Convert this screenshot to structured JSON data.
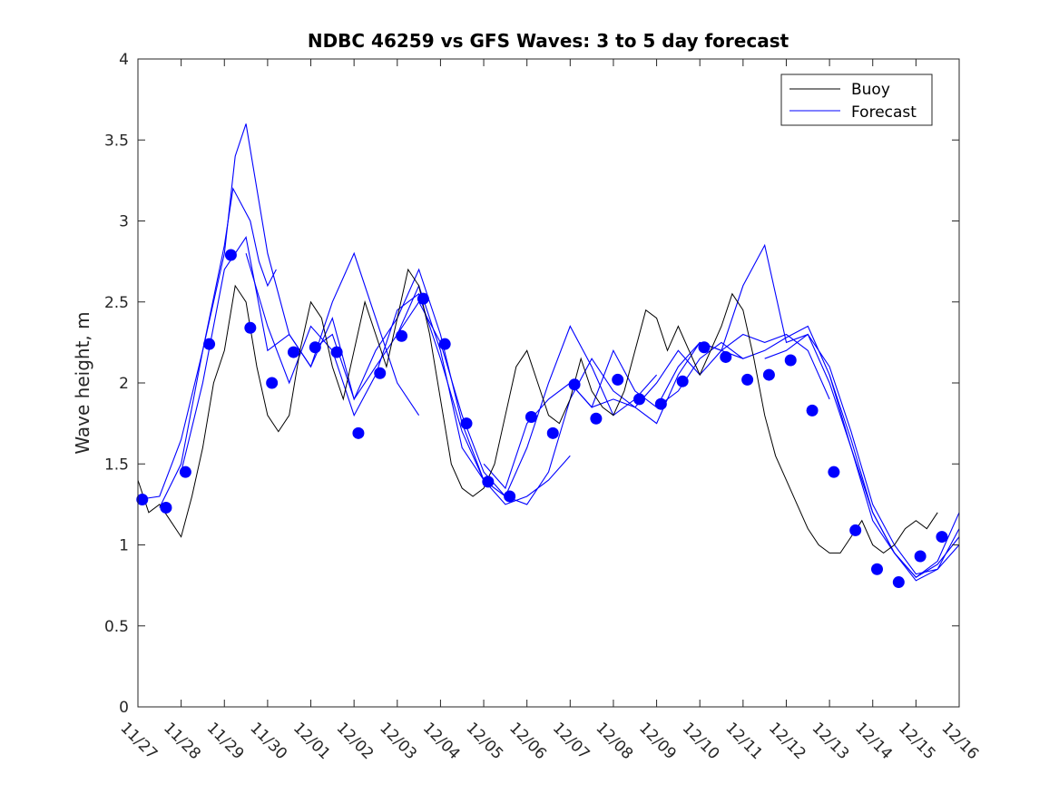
{
  "chart_data": {
    "type": "line",
    "title": "NDBC 46259 vs GFS Waves: 3 to 5 day forecast",
    "xlabel": "",
    "ylabel": "Wave height, m",
    "xlim": [
      0,
      19
    ],
    "ylim": [
      0,
      4
    ],
    "yticks": [
      0,
      0.5,
      1,
      1.5,
      2,
      2.5,
      3,
      3.5,
      4
    ],
    "ytick_labels": [
      "0",
      "0.5",
      "1",
      "1.5",
      "2",
      "2.5",
      "3",
      "3.5",
      "4"
    ],
    "xtick_labels": [
      "11/27",
      "11/28",
      "11/29",
      "11/30",
      "12/01",
      "12/02",
      "12/03",
      "12/04",
      "12/05",
      "12/06",
      "12/07",
      "12/08",
      "12/09",
      "12/10",
      "12/11",
      "12/12",
      "12/13",
      "12/14",
      "12/15",
      "12/16"
    ],
    "legend": {
      "location": "top-right",
      "entries": [
        "Buoy",
        "Forecast"
      ]
    },
    "colors": {
      "buoy": "#000000",
      "forecast": "#0000ff",
      "axis": "#262626"
    },
    "buoy": {
      "name": "Buoy",
      "x": [
        0,
        0.25,
        0.5,
        0.75,
        1,
        1.25,
        1.5,
        1.75,
        2,
        2.25,
        2.5,
        2.75,
        3,
        3.25,
        3.5,
        3.75,
        4,
        4.25,
        4.5,
        4.75,
        5,
        5.25,
        5.5,
        5.75,
        6,
        6.25,
        6.5,
        6.75,
        7,
        7.25,
        7.5,
        7.75,
        8,
        8.25,
        8.5,
        8.75,
        9,
        9.25,
        9.5,
        9.75,
        10,
        10.25,
        10.5,
        10.75,
        11,
        11.25,
        11.5,
        11.75,
        12,
        12.25,
        12.5,
        12.75,
        13,
        13.25,
        13.5,
        13.75,
        14,
        14.25,
        14.5,
        14.75,
        15,
        15.25,
        15.5,
        15.75,
        16,
        16.25,
        16.5,
        16.75,
        17,
        17.25,
        17.5,
        17.75,
        18,
        18.25,
        18.5
      ],
      "y": [
        1.4,
        1.2,
        1.25,
        1.15,
        1.05,
        1.3,
        1.6,
        2.0,
        2.2,
        2.6,
        2.5,
        2.1,
        1.8,
        1.7,
        1.8,
        2.2,
        2.5,
        2.4,
        2.1,
        1.9,
        2.2,
        2.5,
        2.3,
        2.1,
        2.4,
        2.7,
        2.6,
        2.3,
        1.9,
        1.5,
        1.35,
        1.3,
        1.35,
        1.5,
        1.8,
        2.1,
        2.2,
        2.0,
        1.8,
        1.75,
        1.9,
        2.15,
        1.95,
        1.85,
        1.8,
        1.95,
        2.2,
        2.45,
        2.4,
        2.2,
        2.35,
        2.2,
        2.05,
        2.2,
        2.35,
        2.55,
        2.45,
        2.15,
        1.8,
        1.55,
        1.4,
        1.25,
        1.1,
        1.0,
        0.95,
        0.95,
        1.05,
        1.15,
        1.0,
        0.95,
        1.0,
        1.1,
        1.15,
        1.1,
        1.2
      ]
    },
    "forecast_runs": [
      {
        "name": "Forecast",
        "x": [
          0,
          0.5,
          1.0,
          1.5,
          2.0,
          2.2,
          2.4,
          2.6,
          2.8,
          3.0,
          3.2
        ],
        "y": [
          1.28,
          1.3,
          1.65,
          2.2,
          2.85,
          3.2,
          3.1,
          3.0,
          2.75,
          2.6,
          2.7
        ]
      },
      {
        "name": "Forecast",
        "x": [
          0.5,
          1.0,
          1.5,
          2.0,
          2.25,
          2.5,
          2.75,
          3.0,
          3.5,
          4.0,
          4.5,
          5.0,
          5.5,
          6.0,
          6.5
        ],
        "y": [
          1.23,
          1.5,
          2.2,
          2.8,
          3.4,
          3.6,
          3.2,
          2.8,
          2.3,
          2.1,
          2.5,
          2.8,
          2.4,
          2.0,
          1.8
        ]
      },
      {
        "name": "Forecast",
        "x": [
          1.0,
          1.5,
          2.0,
          2.5,
          3.0,
          3.5,
          4.0,
          4.5,
          5.0,
          5.5,
          6.0,
          6.5,
          7.0,
          7.5,
          8.0
        ],
        "y": [
          1.45,
          2.0,
          2.7,
          2.9,
          2.2,
          2.3,
          2.1,
          2.4,
          1.9,
          2.1,
          2.3,
          2.6,
          2.2,
          1.6,
          1.4
        ]
      },
      {
        "name": "Forecast",
        "x": [
          2.5,
          3.0,
          3.5,
          4.0,
          4.5,
          5.0,
          5.5,
          6.0,
          6.5,
          7.0,
          7.5,
          8.0,
          8.5,
          9.0,
          9.5,
          10.0
        ],
        "y": [
          2.8,
          2.35,
          2.0,
          2.35,
          2.2,
          1.8,
          2.05,
          2.45,
          2.55,
          2.15,
          1.7,
          1.4,
          1.25,
          1.3,
          1.4,
          1.55
        ]
      },
      {
        "name": "Forecast",
        "x": [
          4.0,
          4.5,
          5.0,
          5.5,
          6.0,
          6.5,
          7.0,
          7.5,
          8.0,
          8.5,
          9.0,
          9.5,
          10.0,
          10.5,
          11.0,
          11.5,
          12.0
        ],
        "y": [
          2.2,
          2.3,
          1.9,
          2.2,
          2.4,
          2.7,
          2.3,
          1.75,
          1.4,
          1.3,
          1.6,
          2.0,
          2.35,
          2.1,
          1.8,
          1.9,
          2.05
        ]
      },
      {
        "name": "Forecast",
        "x": [
          6.0,
          6.5,
          7.0,
          7.5,
          8.0,
          8.5,
          9.0,
          9.5,
          10.0,
          10.5,
          11.0,
          11.5,
          12.0,
          12.5,
          13.0,
          13.5,
          14.0
        ],
        "y": [
          2.3,
          2.5,
          2.25,
          1.8,
          1.45,
          1.3,
          1.25,
          1.45,
          1.9,
          2.15,
          1.95,
          1.85,
          1.75,
          2.05,
          2.25,
          2.2,
          2.15
        ]
      },
      {
        "name": "Forecast",
        "x": [
          8.0,
          8.5,
          9.0,
          9.5,
          10.0,
          10.5,
          11.0,
          11.5,
          12.0,
          12.5,
          13.0,
          13.5,
          14.0,
          14.5,
          15.0,
          15.5,
          16.0
        ],
        "y": [
          1.5,
          1.35,
          1.75,
          1.9,
          2.0,
          1.85,
          2.2,
          1.95,
          1.85,
          2.1,
          2.25,
          2.2,
          2.3,
          2.25,
          2.3,
          2.2,
          1.9
        ]
      },
      {
        "name": "Forecast",
        "x": [
          10.0,
          10.5,
          11.0,
          11.5,
          12.0,
          12.5,
          13.0,
          13.5,
          14.0,
          14.5,
          15.0,
          15.5,
          16.0,
          16.5,
          17.0,
          17.5,
          18.0,
          18.5,
          19.0
        ],
        "y": [
          2.0,
          1.85,
          1.9,
          1.85,
          2.0,
          2.2,
          2.05,
          2.2,
          2.6,
          2.85,
          2.25,
          2.3,
          2.0,
          1.6,
          1.2,
          0.95,
          0.8,
          0.88,
          1.05
        ]
      },
      {
        "name": "Forecast",
        "x": [
          12.0,
          12.5,
          13.0,
          13.5,
          14.0,
          14.5,
          15.0,
          15.5,
          16.0,
          16.5,
          17.0,
          17.5,
          18.0,
          18.5,
          19.0
        ],
        "y": [
          1.85,
          1.95,
          2.15,
          2.25,
          2.15,
          2.2,
          2.28,
          2.35,
          2.05,
          1.65,
          1.2,
          0.95,
          0.78,
          0.85,
          1.0
        ]
      },
      {
        "name": "Forecast",
        "x": [
          14.5,
          15.0,
          15.5,
          16.0,
          16.5,
          17.0,
          17.5,
          18.0,
          18.5,
          19.0
        ],
        "y": [
          2.15,
          2.2,
          2.3,
          2.1,
          1.7,
          1.25,
          1.0,
          0.82,
          0.85,
          1.1
        ]
      },
      {
        "name": "Forecast",
        "x": [
          16.0,
          16.5,
          17.0,
          17.5,
          18.0,
          18.5,
          19.0
        ],
        "y": [
          2.05,
          1.6,
          1.15,
          0.95,
          0.8,
          0.9,
          1.2
        ]
      }
    ],
    "forecast_points": {
      "x": [
        0.1,
        0.65,
        1.1,
        1.65,
        2.15,
        2.6,
        3.1,
        3.6,
        4.1,
        4.6,
        5.1,
        5.6,
        6.1,
        6.6,
        7.1,
        7.6,
        8.1,
        8.6,
        9.1,
        9.6,
        10.1,
        10.6,
        11.1,
        11.6,
        12.1,
        12.6,
        13.1,
        13.6,
        14.1,
        14.6,
        15.1,
        15.6,
        16.1,
        16.6,
        17.1,
        17.6,
        18.1,
        18.6
      ],
      "y": [
        1.28,
        1.23,
        1.45,
        2.24,
        2.79,
        2.34,
        2.0,
        2.19,
        2.22,
        2.19,
        1.69,
        2.06,
        2.29,
        2.52,
        2.24,
        1.75,
        1.39,
        1.3,
        1.79,
        1.69,
        1.99,
        1.78,
        2.02,
        1.9,
        1.87,
        2.01,
        2.22,
        2.16,
        2.02,
        2.05,
        2.14,
        1.83,
        1.45,
        1.09,
        0.85,
        0.77,
        0.93,
        1.05
      ]
    }
  }
}
